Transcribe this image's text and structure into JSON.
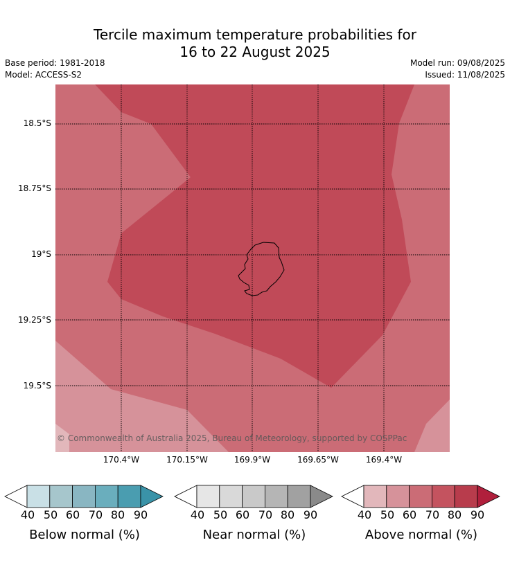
{
  "title": {
    "line1": "Tercile maximum temperature probabilities for",
    "line2": "16 to 22 August 2025"
  },
  "meta": {
    "base_period": "Base period: 1981-2018",
    "model": "Model: ACCESS-S2",
    "model_run": "Model run: 09/08/2025",
    "issued": "Issued: 11/08/2025"
  },
  "map": {
    "lat_labels": [
      "18.5°S",
      "18.75°S",
      "19°S",
      "19.25°S",
      "19.5°S"
    ],
    "lon_labels": [
      "170.4°W",
      "170.15°W",
      "169.9°W",
      "169.65°W",
      "169.4°W"
    ],
    "copyright": "© Commonwealth of Australia 2025, Bureau of Meteorology, supported by COSPPac",
    "island": "Niue",
    "colors": {
      "above_50_60": "#d6929a",
      "above_60_70": "#cb6c76",
      "above_70_80": "#c04a58",
      "above_40_50": "#e2b7bb"
    }
  },
  "colorbars": [
    {
      "caption": "Below normal (%)",
      "ticks": [
        "40",
        "50",
        "60",
        "70",
        "80",
        "90"
      ],
      "colors": [
        "#c9e0e6",
        "#a6c6cc",
        "#89b6c2",
        "#6aaebd",
        "#4a9db0",
        "#3a93a8"
      ]
    },
    {
      "caption": "Near normal (%)",
      "ticks": [
        "40",
        "50",
        "60",
        "70",
        "80",
        "90"
      ],
      "colors": [
        "#e6e6e6",
        "#d9d9d9",
        "#c9c9c9",
        "#b5b5b5",
        "#a1a1a1",
        "#8a8a8a"
      ]
    },
    {
      "caption": "Above normal (%)",
      "ticks": [
        "40",
        "50",
        "60",
        "70",
        "80",
        "90"
      ],
      "colors": [
        "#e2b7bb",
        "#d6929a",
        "#cb6c76",
        "#c4535f",
        "#b83c4c",
        "#b01f3c"
      ]
    }
  ]
}
